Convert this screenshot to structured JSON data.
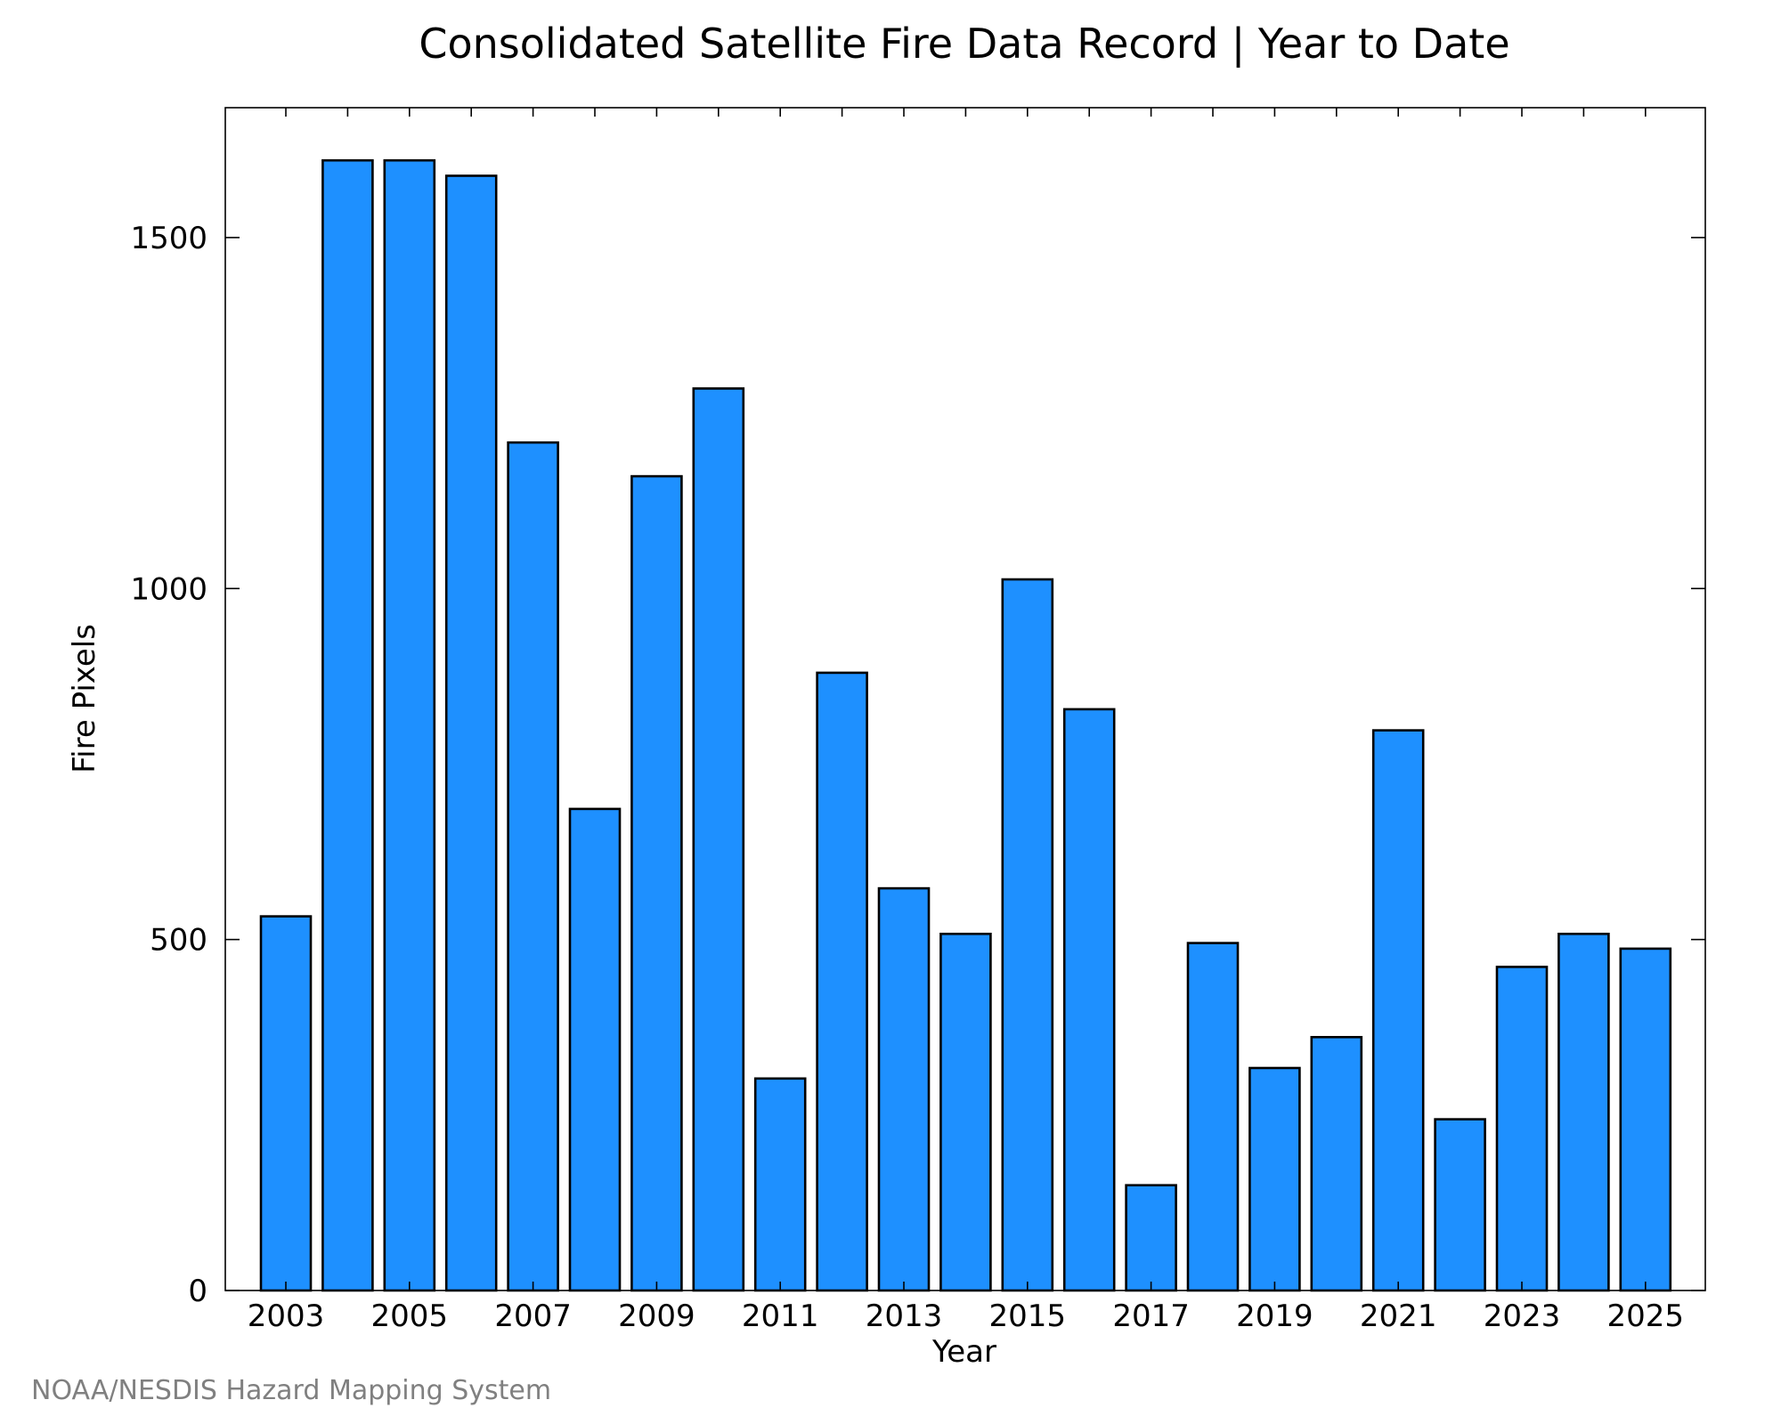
{
  "chart_data": {
    "type": "bar",
    "title": "Consolidated Satellite Fire Data Record | Year to Date",
    "xlabel": "Year",
    "ylabel": "Fire Pixels",
    "categories": [
      "2003",
      "2004",
      "2005",
      "2006",
      "2007",
      "2008",
      "2009",
      "2010",
      "2011",
      "2012",
      "2013",
      "2014",
      "2015",
      "2016",
      "2017",
      "2018",
      "2019",
      "2020",
      "2021",
      "2022",
      "2023",
      "2024",
      "2025"
    ],
    "values": [
      533,
      1610,
      1610,
      1588,
      1208,
      686,
      1160,
      1285,
      302,
      880,
      573,
      508,
      1013,
      828,
      150,
      495,
      317,
      361,
      798,
      244,
      461,
      508,
      487
    ],
    "x_tick_labels": [
      "2003",
      "2005",
      "2007",
      "2009",
      "2011",
      "2013",
      "2015",
      "2017",
      "2019",
      "2021",
      "2023",
      "2025"
    ],
    "y_ticks": [
      0,
      500,
      1000,
      1500
    ],
    "ylim": [
      0,
      1685
    ],
    "bar_color": "#1e90ff",
    "grid": false,
    "legend": "none",
    "credit": "NOAA/NESDIS Hazard Mapping System"
  }
}
